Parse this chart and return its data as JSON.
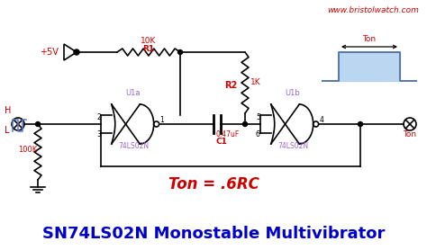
{
  "title": "SN74LS02N Monostable Multivibrator",
  "title_color": "#0000CC",
  "title_fontsize": 13,
  "website": "www.bristolwatch.com",
  "website_color": "#CC0000",
  "ton_eq": "Ton = .6RC",
  "ton_eq_color": "#CC0000",
  "ton_eq_fontsize": 12,
  "bg_color": "#FFFFFF",
  "circuit_color": "#000000",
  "label_color": "#CC0000",
  "gate_label_color": "#9966CC",
  "fig_width": 4.74,
  "fig_height": 2.78,
  "dpi": 100
}
